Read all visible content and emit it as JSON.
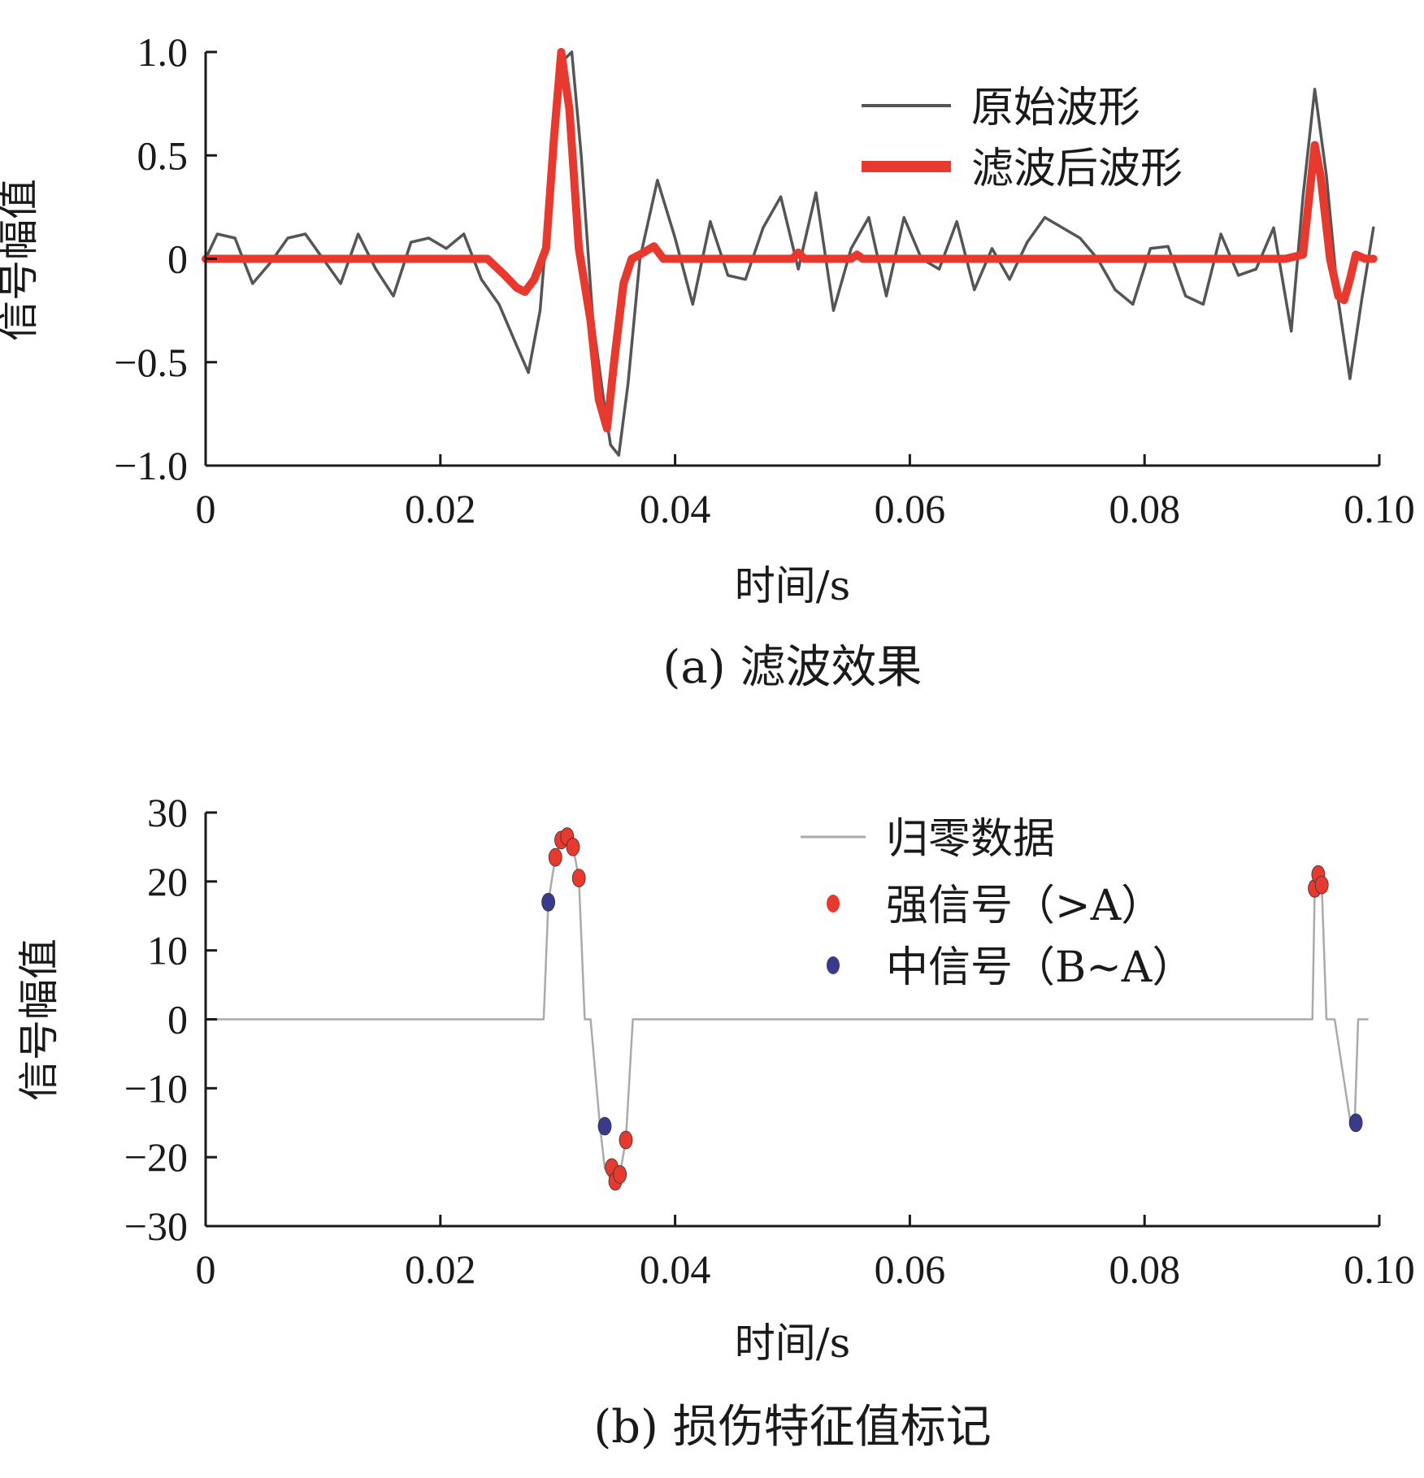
{
  "chart_data": [
    {
      "type": "line",
      "caption": "(a)  滤波效果",
      "xlabel": "时间/s",
      "ylabel": "信号幅值",
      "xlim": [
        0,
        0.1
      ],
      "ylim": [
        -1.0,
        1.0
      ],
      "xticks": [
        0,
        0.02,
        0.04,
        0.06,
        0.08,
        0.1
      ],
      "xtick_labels": [
        "0",
        "0.02",
        "0.04",
        "0.06",
        "0.08",
        "0.10"
      ],
      "yticks": [
        1.0,
        0.5,
        0,
        -0.5,
        -1.0
      ],
      "ytick_labels": [
        "1.0",
        "0.5",
        "0",
        "−0.5",
        "−1.0"
      ],
      "grid": false,
      "legend_position": "top-right",
      "series": [
        {
          "name": "原始波形",
          "color": "#555555",
          "x": [
            0,
            0.001,
            0.0025,
            0.004,
            0.0055,
            0.007,
            0.0085,
            0.01,
            0.0115,
            0.013,
            0.0145,
            0.016,
            0.0175,
            0.019,
            0.0205,
            0.022,
            0.0235,
            0.025,
            0.0265,
            0.0275,
            0.0285,
            0.0295,
            0.0303,
            0.0312,
            0.032,
            0.033,
            0.034,
            0.0345,
            0.0352,
            0.036,
            0.037,
            0.0385,
            0.04,
            0.0415,
            0.043,
            0.0445,
            0.046,
            0.0475,
            0.049,
            0.0505,
            0.052,
            0.0535,
            0.055,
            0.0565,
            0.058,
            0.0595,
            0.061,
            0.0625,
            0.064,
            0.0655,
            0.067,
            0.0685,
            0.07,
            0.0715,
            0.073,
            0.0745,
            0.076,
            0.0775,
            0.079,
            0.0805,
            0.082,
            0.0835,
            0.085,
            0.0865,
            0.088,
            0.0895,
            0.091,
            0.0925,
            0.0935,
            0.0945,
            0.0955,
            0.0965,
            0.0975,
            0.0985,
            0.0995
          ],
          "y": [
            0.0,
            0.12,
            0.1,
            -0.12,
            -0.02,
            0.1,
            0.12,
            0.0,
            -0.12,
            0.12,
            -0.05,
            -0.18,
            0.08,
            0.1,
            0.05,
            0.12,
            -0.1,
            -0.22,
            -0.42,
            -0.55,
            -0.25,
            0.45,
            0.95,
            1.0,
            0.5,
            -0.3,
            -0.72,
            -0.9,
            -0.95,
            -0.6,
            0.0,
            0.38,
            0.1,
            -0.22,
            0.18,
            -0.08,
            -0.1,
            0.15,
            0.3,
            -0.05,
            0.32,
            -0.25,
            0.05,
            0.2,
            -0.18,
            0.2,
            0.0,
            -0.05,
            0.18,
            -0.15,
            0.05,
            -0.1,
            0.08,
            0.2,
            0.15,
            0.1,
            0.0,
            -0.15,
            -0.22,
            0.05,
            0.06,
            -0.18,
            -0.22,
            0.12,
            -0.08,
            -0.05,
            0.15,
            -0.35,
            0.3,
            0.82,
            0.4,
            -0.2,
            -0.58,
            -0.2,
            0.15
          ]
        },
        {
          "name": "滤波后波形",
          "color": "#e8392f",
          "x": [
            0,
            0.024,
            0.0255,
            0.0265,
            0.0272,
            0.028,
            0.029,
            0.0297,
            0.0303,
            0.031,
            0.0318,
            0.0328,
            0.0335,
            0.0342,
            0.0348,
            0.0356,
            0.0363,
            0.037,
            0.0382,
            0.039,
            0.04,
            0.05,
            0.0505,
            0.051,
            0.055,
            0.0555,
            0.056,
            0.092,
            0.0935,
            0.0945,
            0.095,
            0.0958,
            0.0965,
            0.097,
            0.0975,
            0.098,
            0.0988,
            0.0995
          ],
          "y": [
            0.0,
            0.0,
            -0.08,
            -0.14,
            -0.16,
            -0.1,
            0.05,
            0.6,
            1.0,
            0.72,
            0.05,
            -0.3,
            -0.68,
            -0.82,
            -0.5,
            -0.12,
            0.0,
            0.02,
            0.06,
            0.0,
            0.0,
            0.0,
            0.03,
            0.0,
            0.0,
            0.02,
            0.0,
            0.0,
            0.02,
            0.55,
            0.4,
            0.0,
            -0.18,
            -0.2,
            -0.1,
            0.02,
            0.0,
            0.0
          ]
        }
      ]
    },
    {
      "type": "scatter",
      "caption": "(b)  损伤特征值标记",
      "xlabel": "时间/s",
      "ylabel": "信号幅值",
      "xlim": [
        0,
        0.1
      ],
      "ylim": [
        -30,
        30
      ],
      "xticks": [
        0,
        0.02,
        0.04,
        0.06,
        0.08,
        0.1
      ],
      "xtick_labels": [
        "0",
        "0.02",
        "0.04",
        "0.06",
        "0.08",
        "0.10"
      ],
      "yticks": [
        30,
        20,
        10,
        0,
        -10,
        -20,
        -30
      ],
      "ytick_labels": [
        "30",
        "20",
        "10",
        "0",
        "−10",
        "−20",
        "−30"
      ],
      "grid": false,
      "legend_position": "top-right",
      "series": [
        {
          "name": "归零数据",
          "kind": "line",
          "color": "#aaaaaa",
          "x": [
            0,
            0.0288,
            0.0292,
            0.0298,
            0.0303,
            0.0307,
            0.031,
            0.0313,
            0.0318,
            0.0323,
            0.0328,
            0.0336,
            0.034,
            0.0346,
            0.0349,
            0.0353,
            0.0358,
            0.0364,
            0.0372,
            0.0372,
            0.0943,
            0.0945,
            0.0948,
            0.0951,
            0.0955,
            0.0959,
            0.0962,
            0.0975,
            0.0979,
            0.0982,
            0.0985,
            0.099
          ],
          "y": [
            0,
            0,
            17,
            23.5,
            26,
            26,
            26.5,
            25,
            20.5,
            0,
            0,
            -15.5,
            -21.5,
            -23.5,
            -24.5,
            -22.5,
            -17.5,
            0,
            0,
            0,
            0,
            19,
            21,
            19.5,
            0,
            0,
            0,
            -14.5,
            -15,
            0,
            0,
            0
          ]
        },
        {
          "name": "强信号（>A）",
          "color": "#e8392f",
          "x": [
            0.0298,
            0.0303,
            0.0308,
            0.0313,
            0.0318,
            0.0346,
            0.0349,
            0.0353,
            0.0358,
            0.0945,
            0.0948,
            0.0951
          ],
          "y": [
            23.5,
            26,
            26.5,
            25,
            20.5,
            -21.5,
            -23.5,
            -22.5,
            -17.5,
            19,
            21,
            19.5
          ]
        },
        {
          "name": "中信号（B~A）",
          "color": "#3a3a8c",
          "x": [
            0.0292,
            0.034,
            0.098
          ],
          "y": [
            17,
            -15.5,
            -15
          ]
        }
      ]
    }
  ]
}
